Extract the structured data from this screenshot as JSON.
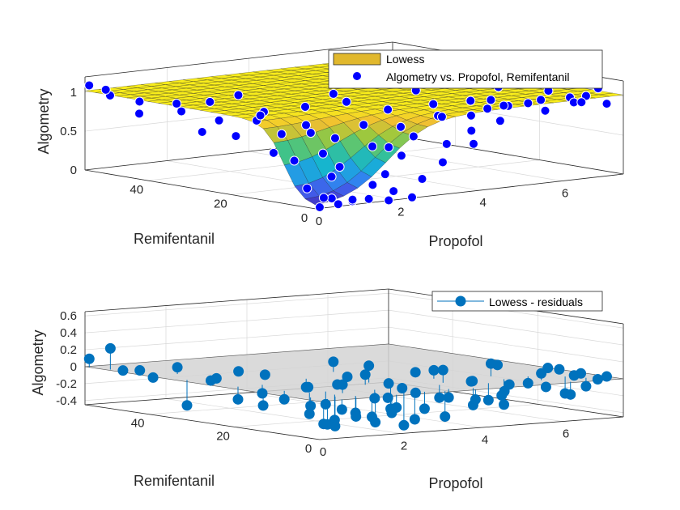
{
  "chart_data": [
    {
      "type": "surface",
      "title": "",
      "xlabel": "Propofol",
      "ylabel": "Remifentanil",
      "zlabel": "Algometry",
      "xticks": [
        "0",
        "2",
        "4",
        "6"
      ],
      "yticks": [
        "0",
        "20",
        "40"
      ],
      "zticks": [
        "0",
        "0.5",
        "1"
      ],
      "xlim": [
        0,
        7.5
      ],
      "ylim": [
        0,
        55
      ],
      "zlim": [
        0,
        1.2
      ],
      "legend": [
        "Lowess",
        "Algometry vs. Propofol, Remifentanil"
      ],
      "legend_position": "top-right",
      "surface_colormap": "parula",
      "marker_color": "#0000ff",
      "surface_model": "decreasing sigmoid of propofol and remifentanil, minimum near origin",
      "points": [
        {
          "x": 0.0,
          "y": 54,
          "z": 1.1
        },
        {
          "x": 0.1,
          "y": 50,
          "z": 1.0
        },
        {
          "x": 0.2,
          "y": 52,
          "z": 1.05
        },
        {
          "x": 0.3,
          "y": 45,
          "z": 0.8
        },
        {
          "x": 0.0,
          "y": 42,
          "z": 1.0
        },
        {
          "x": 0.1,
          "y": 33,
          "z": 0.95
        },
        {
          "x": 0.3,
          "y": 30,
          "z": 0.7
        },
        {
          "x": 0.2,
          "y": 25,
          "z": 0.9
        },
        {
          "x": 0.1,
          "y": 20,
          "z": 0.75
        },
        {
          "x": 0.4,
          "y": 18,
          "z": 0.95
        },
        {
          "x": 0.6,
          "y": 14,
          "z": 0.8
        },
        {
          "x": 0.2,
          "y": 12,
          "z": 0.6
        },
        {
          "x": 0.5,
          "y": 10,
          "z": 0.5
        },
        {
          "x": 0.8,
          "y": 9,
          "z": 0.85
        },
        {
          "x": 1.0,
          "y": 6,
          "z": 0.3
        },
        {
          "x": 0.3,
          "y": 5,
          "z": 0.2
        },
        {
          "x": 0.8,
          "y": 4,
          "z": 0.05
        },
        {
          "x": 1.2,
          "y": 3,
          "z": 0.0
        },
        {
          "x": 0.4,
          "y": 2,
          "z": 0.1
        },
        {
          "x": 1.5,
          "y": 2,
          "z": 0.02
        },
        {
          "x": 0.2,
          "y": 1,
          "z": 0.0
        },
        {
          "x": 2.0,
          "y": 1,
          "z": 0.1
        },
        {
          "x": 1.0,
          "y": 1,
          "z": 0.05
        },
        {
          "x": 2.4,
          "y": 0.5,
          "z": 0.0
        },
        {
          "x": 0.6,
          "y": 0.5,
          "z": 0.02
        },
        {
          "x": 1.8,
          "y": 0.2,
          "z": 0.0
        },
        {
          "x": 1.3,
          "y": 7,
          "z": 0.4
        },
        {
          "x": 2.0,
          "y": 3,
          "z": 0.3
        },
        {
          "x": 2.5,
          "y": 4,
          "z": 0.5
        },
        {
          "x": 2.2,
          "y": 8,
          "z": 0.6
        },
        {
          "x": 1.7,
          "y": 12,
          "z": 0.7
        },
        {
          "x": 2.8,
          "y": 2,
          "z": 0.2
        },
        {
          "x": 3.0,
          "y": 6,
          "z": 0.7
        },
        {
          "x": 3.2,
          "y": 1,
          "z": 0.4
        },
        {
          "x": 3.5,
          "y": 3,
          "z": 0.6
        },
        {
          "x": 1.4,
          "y": 16,
          "z": 0.85
        },
        {
          "x": 2.6,
          "y": 14,
          "z": 0.8
        },
        {
          "x": 3.8,
          "y": 8,
          "z": 0.9
        },
        {
          "x": 4.0,
          "y": 2,
          "z": 0.75
        },
        {
          "x": 4.3,
          "y": 5,
          "z": 0.9
        },
        {
          "x": 4.6,
          "y": 1,
          "z": 0.85
        },
        {
          "x": 5.0,
          "y": 3,
          "z": 1.0
        },
        {
          "x": 5.3,
          "y": 7,
          "z": 0.95
        },
        {
          "x": 5.8,
          "y": 2,
          "z": 0.9
        },
        {
          "x": 6.0,
          "y": 5,
          "z": 1.0
        },
        {
          "x": 6.3,
          "y": 1,
          "z": 1.05
        },
        {
          "x": 6.6,
          "y": 3,
          "z": 0.95
        },
        {
          "x": 7.0,
          "y": 4,
          "z": 1.0
        },
        {
          "x": 7.3,
          "y": 2,
          "z": 0.9
        },
        {
          "x": 7.5,
          "y": 6,
          "z": 1.05
        },
        {
          "x": 7.4,
          "y": 9,
          "z": 0.85
        },
        {
          "x": 6.9,
          "y": 12,
          "z": 1.0
        },
        {
          "x": 6.2,
          "y": 10,
          "z": 0.9
        },
        {
          "x": 5.6,
          "y": 13,
          "z": 0.95
        },
        {
          "x": 4.9,
          "y": 11,
          "z": 1.0
        },
        {
          "x": 4.4,
          "y": 15,
          "z": 0.95
        },
        {
          "x": 3.6,
          "y": 18,
          "z": 0.9
        },
        {
          "x": 3.0,
          "y": 22,
          "z": 1.0
        },
        {
          "x": 2.3,
          "y": 25,
          "z": 0.95
        },
        {
          "x": 1.6,
          "y": 28,
          "z": 0.9
        },
        {
          "x": 1.0,
          "y": 35,
          "z": 1.0
        },
        {
          "x": 0.7,
          "y": 40,
          "z": 0.95
        },
        {
          "x": 2.0,
          "y": 38,
          "z": 1.0
        },
        {
          "x": 3.5,
          "y": 30,
          "z": 1.0
        },
        {
          "x": 5.0,
          "y": 25,
          "z": 1.0
        },
        {
          "x": 6.5,
          "y": 20,
          "z": 1.0
        },
        {
          "x": 7.5,
          "y": 15,
          "z": 1.05
        },
        {
          "x": 1.9,
          "y": 5,
          "z": 0.15
        },
        {
          "x": 2.7,
          "y": 9,
          "z": 0.55
        },
        {
          "x": 3.3,
          "y": 12,
          "z": 0.75
        },
        {
          "x": 4.1,
          "y": 10,
          "z": 0.85
        },
        {
          "x": 0.9,
          "y": 22,
          "z": 0.95
        },
        {
          "x": 1.2,
          "y": 10,
          "z": 0.55
        },
        {
          "x": 3.9,
          "y": 0.5,
          "z": 0.6
        },
        {
          "x": 4.8,
          "y": 6,
          "z": 0.95
        }
      ]
    },
    {
      "type": "stem3",
      "title": "",
      "xlabel": "Propofol",
      "ylabel": "Remifentanil",
      "zlabel": "Algometry",
      "xticks": [
        "0",
        "2",
        "4",
        "6"
      ],
      "yticks": [
        "0",
        "20",
        "40"
      ],
      "zticks": [
        "-0.4",
        "-0.2",
        "0",
        "0.2",
        "0.4",
        "0.6"
      ],
      "xlim": [
        0,
        7.5
      ],
      "ylim": [
        0,
        55
      ],
      "zlim": [
        -0.45,
        0.65
      ],
      "legend": [
        "Lowess - residuals"
      ],
      "legend_position": "top-right",
      "marker_color": "#0072bd",
      "plane_color": "#d3d3d3",
      "points": [
        {
          "x": 0.0,
          "y": 54,
          "z": 0.1
        },
        {
          "x": 0.1,
          "y": 50,
          "z": 0.25
        },
        {
          "x": 0.2,
          "y": 48,
          "z": 0.0
        },
        {
          "x": 0.3,
          "y": 45,
          "z": 0.02
        },
        {
          "x": 0.1,
          "y": 40,
          "z": -0.02
        },
        {
          "x": 0.2,
          "y": 33,
          "z": -0.3
        },
        {
          "x": 0.4,
          "y": 28,
          "z": 0.05
        },
        {
          "x": 0.3,
          "y": 22,
          "z": -0.15
        },
        {
          "x": 0.5,
          "y": 18,
          "z": -0.2
        },
        {
          "x": 0.6,
          "y": 14,
          "z": -0.1
        },
        {
          "x": 0.8,
          "y": 10,
          "z": -0.25
        },
        {
          "x": 1.0,
          "y": 6,
          "z": -0.3
        },
        {
          "x": 0.3,
          "y": 5,
          "z": -0.1
        },
        {
          "x": 0.8,
          "y": 4,
          "z": -0.35
        },
        {
          "x": 1.2,
          "y": 3,
          "z": -0.2
        },
        {
          "x": 0.4,
          "y": 2,
          "z": -0.3
        },
        {
          "x": 1.5,
          "y": 2,
          "z": -0.25
        },
        {
          "x": 0.2,
          "y": 1,
          "z": -0.28
        },
        {
          "x": 2.0,
          "y": 1,
          "z": -0.15
        },
        {
          "x": 1.0,
          "y": 1,
          "z": -0.22
        },
        {
          "x": 2.4,
          "y": 0.5,
          "z": -0.3
        },
        {
          "x": 0.6,
          "y": 0.5,
          "z": -0.12
        },
        {
          "x": 1.8,
          "y": 0.2,
          "z": -0.2
        },
        {
          "x": 1.3,
          "y": 7,
          "z": 0.1
        },
        {
          "x": 2.0,
          "y": 3,
          "z": -0.05
        },
        {
          "x": 2.5,
          "y": 4,
          "z": -0.4
        },
        {
          "x": 2.2,
          "y": 8,
          "z": -0.1
        },
        {
          "x": 1.7,
          "y": 12,
          "z": 0.05
        },
        {
          "x": 2.8,
          "y": 2,
          "z": -0.2
        },
        {
          "x": 3.0,
          "y": 6,
          "z": -0.05
        },
        {
          "x": 3.2,
          "y": 1,
          "z": -0.3
        },
        {
          "x": 3.5,
          "y": 3,
          "z": -0.1
        },
        {
          "x": 1.4,
          "y": 16,
          "z": 0.0
        },
        {
          "x": 2.6,
          "y": 14,
          "z": 0.12
        },
        {
          "x": 3.8,
          "y": 8,
          "z": -0.15
        },
        {
          "x": 4.0,
          "y": 2,
          "z": -0.2
        },
        {
          "x": 4.3,
          "y": 5,
          "z": 0.05
        },
        {
          "x": 4.6,
          "y": 1,
          "z": -0.1
        },
        {
          "x": 5.0,
          "y": 3,
          "z": 0.0
        },
        {
          "x": 5.3,
          "y": 7,
          "z": -0.12
        },
        {
          "x": 5.8,
          "y": 2,
          "z": -0.05
        },
        {
          "x": 6.0,
          "y": 5,
          "z": 0.08
        },
        {
          "x": 6.3,
          "y": 1,
          "z": -0.15
        },
        {
          "x": 6.6,
          "y": 3,
          "z": 0.05
        },
        {
          "x": 7.0,
          "y": 4,
          "z": -0.1
        },
        {
          "x": 7.3,
          "y": 2,
          "z": 0.02
        },
        {
          "x": 7.5,
          "y": 6,
          "z": -0.05
        },
        {
          "x": 7.4,
          "y": 9,
          "z": 0.0
        },
        {
          "x": 6.9,
          "y": 12,
          "z": 0.06
        },
        {
          "x": 6.2,
          "y": 10,
          "z": -0.08
        },
        {
          "x": 5.6,
          "y": 13,
          "z": 0.15
        },
        {
          "x": 4.9,
          "y": 11,
          "z": -0.02
        },
        {
          "x": 4.4,
          "y": 15,
          "z": 0.1
        },
        {
          "x": 3.6,
          "y": 18,
          "z": -0.05
        },
        {
          "x": 3.0,
          "y": 22,
          "z": 0.02
        },
        {
          "x": 2.3,
          "y": 25,
          "z": -0.1
        },
        {
          "x": 1.6,
          "y": 28,
          "z": 0.05
        },
        {
          "x": 1.0,
          "y": 35,
          "z": -0.05
        },
        {
          "x": 0.7,
          "y": 40,
          "z": 0.08
        },
        {
          "x": 2.0,
          "y": 38,
          "z": 0.0
        },
        {
          "x": 3.5,
          "y": 30,
          "z": 0.12
        },
        {
          "x": 5.0,
          "y": 25,
          "z": -0.02
        },
        {
          "x": 6.5,
          "y": 20,
          "z": 0.05
        },
        {
          "x": 7.5,
          "y": 15,
          "z": 0.0
        },
        {
          "x": 1.9,
          "y": 5,
          "z": -0.35
        },
        {
          "x": 2.7,
          "y": 9,
          "z": -0.25
        },
        {
          "x": 3.3,
          "y": 12,
          "z": -0.05
        },
        {
          "x": 4.1,
          "y": 10,
          "z": 0.15
        },
        {
          "x": 0.9,
          "y": 22,
          "z": -0.1
        },
        {
          "x": 1.2,
          "y": 10,
          "z": -0.15
        },
        {
          "x": 3.9,
          "y": 0.5,
          "z": -0.12
        },
        {
          "x": 4.8,
          "y": 6,
          "z": -0.2
        },
        {
          "x": 5.5,
          "y": 9,
          "z": -0.3
        },
        {
          "x": 6.8,
          "y": 7,
          "z": -0.2
        },
        {
          "x": 2.9,
          "y": 16,
          "z": 0.2
        }
      ]
    }
  ]
}
